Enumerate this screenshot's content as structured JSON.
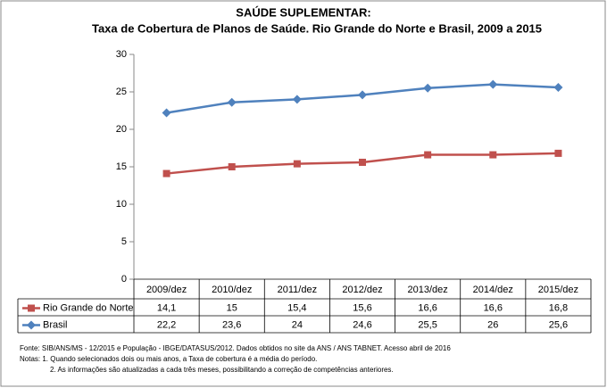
{
  "chart_data": {
    "type": "line",
    "title": "SAÚDE SUPLEMENTAR:",
    "subtitle": "Taxa de Cobertura de Planos de Saúde. Rio Grande do Norte e Brasil, 2009 a 2015",
    "categories": [
      "2009/dez",
      "2010/dez",
      "2011/dez",
      "2012/dez",
      "2013/dez",
      "2014/dez",
      "2015/dez"
    ],
    "series": [
      {
        "name": "Rio Grande do Norte",
        "color": "#c0504d",
        "marker": "square",
        "values": [
          14.1,
          15,
          15.4,
          15.6,
          16.6,
          16.6,
          16.8
        ],
        "value_labels": [
          "14,1",
          "15",
          "15,4",
          "15,6",
          "16,6",
          "16,6",
          "16,8"
        ]
      },
      {
        "name": "Brasil",
        "color": "#4f81bd",
        "marker": "diamond",
        "values": [
          22.2,
          23.6,
          24,
          24.6,
          25.5,
          26,
          25.6
        ],
        "value_labels": [
          "22,2",
          "23,6",
          "24",
          "24,6",
          "25,5",
          "26",
          "25,6"
        ]
      }
    ],
    "ylim": [
      0,
      30
    ],
    "yticks": [
      0,
      5,
      10,
      15,
      20,
      25,
      30
    ],
    "grid": false,
    "notes": [
      "Fonte: SIB/ANS/MS - 12/2015 e População - IBGE/DATASUS/2012. Dados obtidos no site da ANS / ANS TABNET. Acesso abril de 2016",
      "Notas: 1. Quando selecionados dois ou mais anos, a Taxa de cobertura é a média do período.",
      "2. As informações são atualizadas a cada três meses, possibilitando a correção de competências anteriores."
    ]
  }
}
